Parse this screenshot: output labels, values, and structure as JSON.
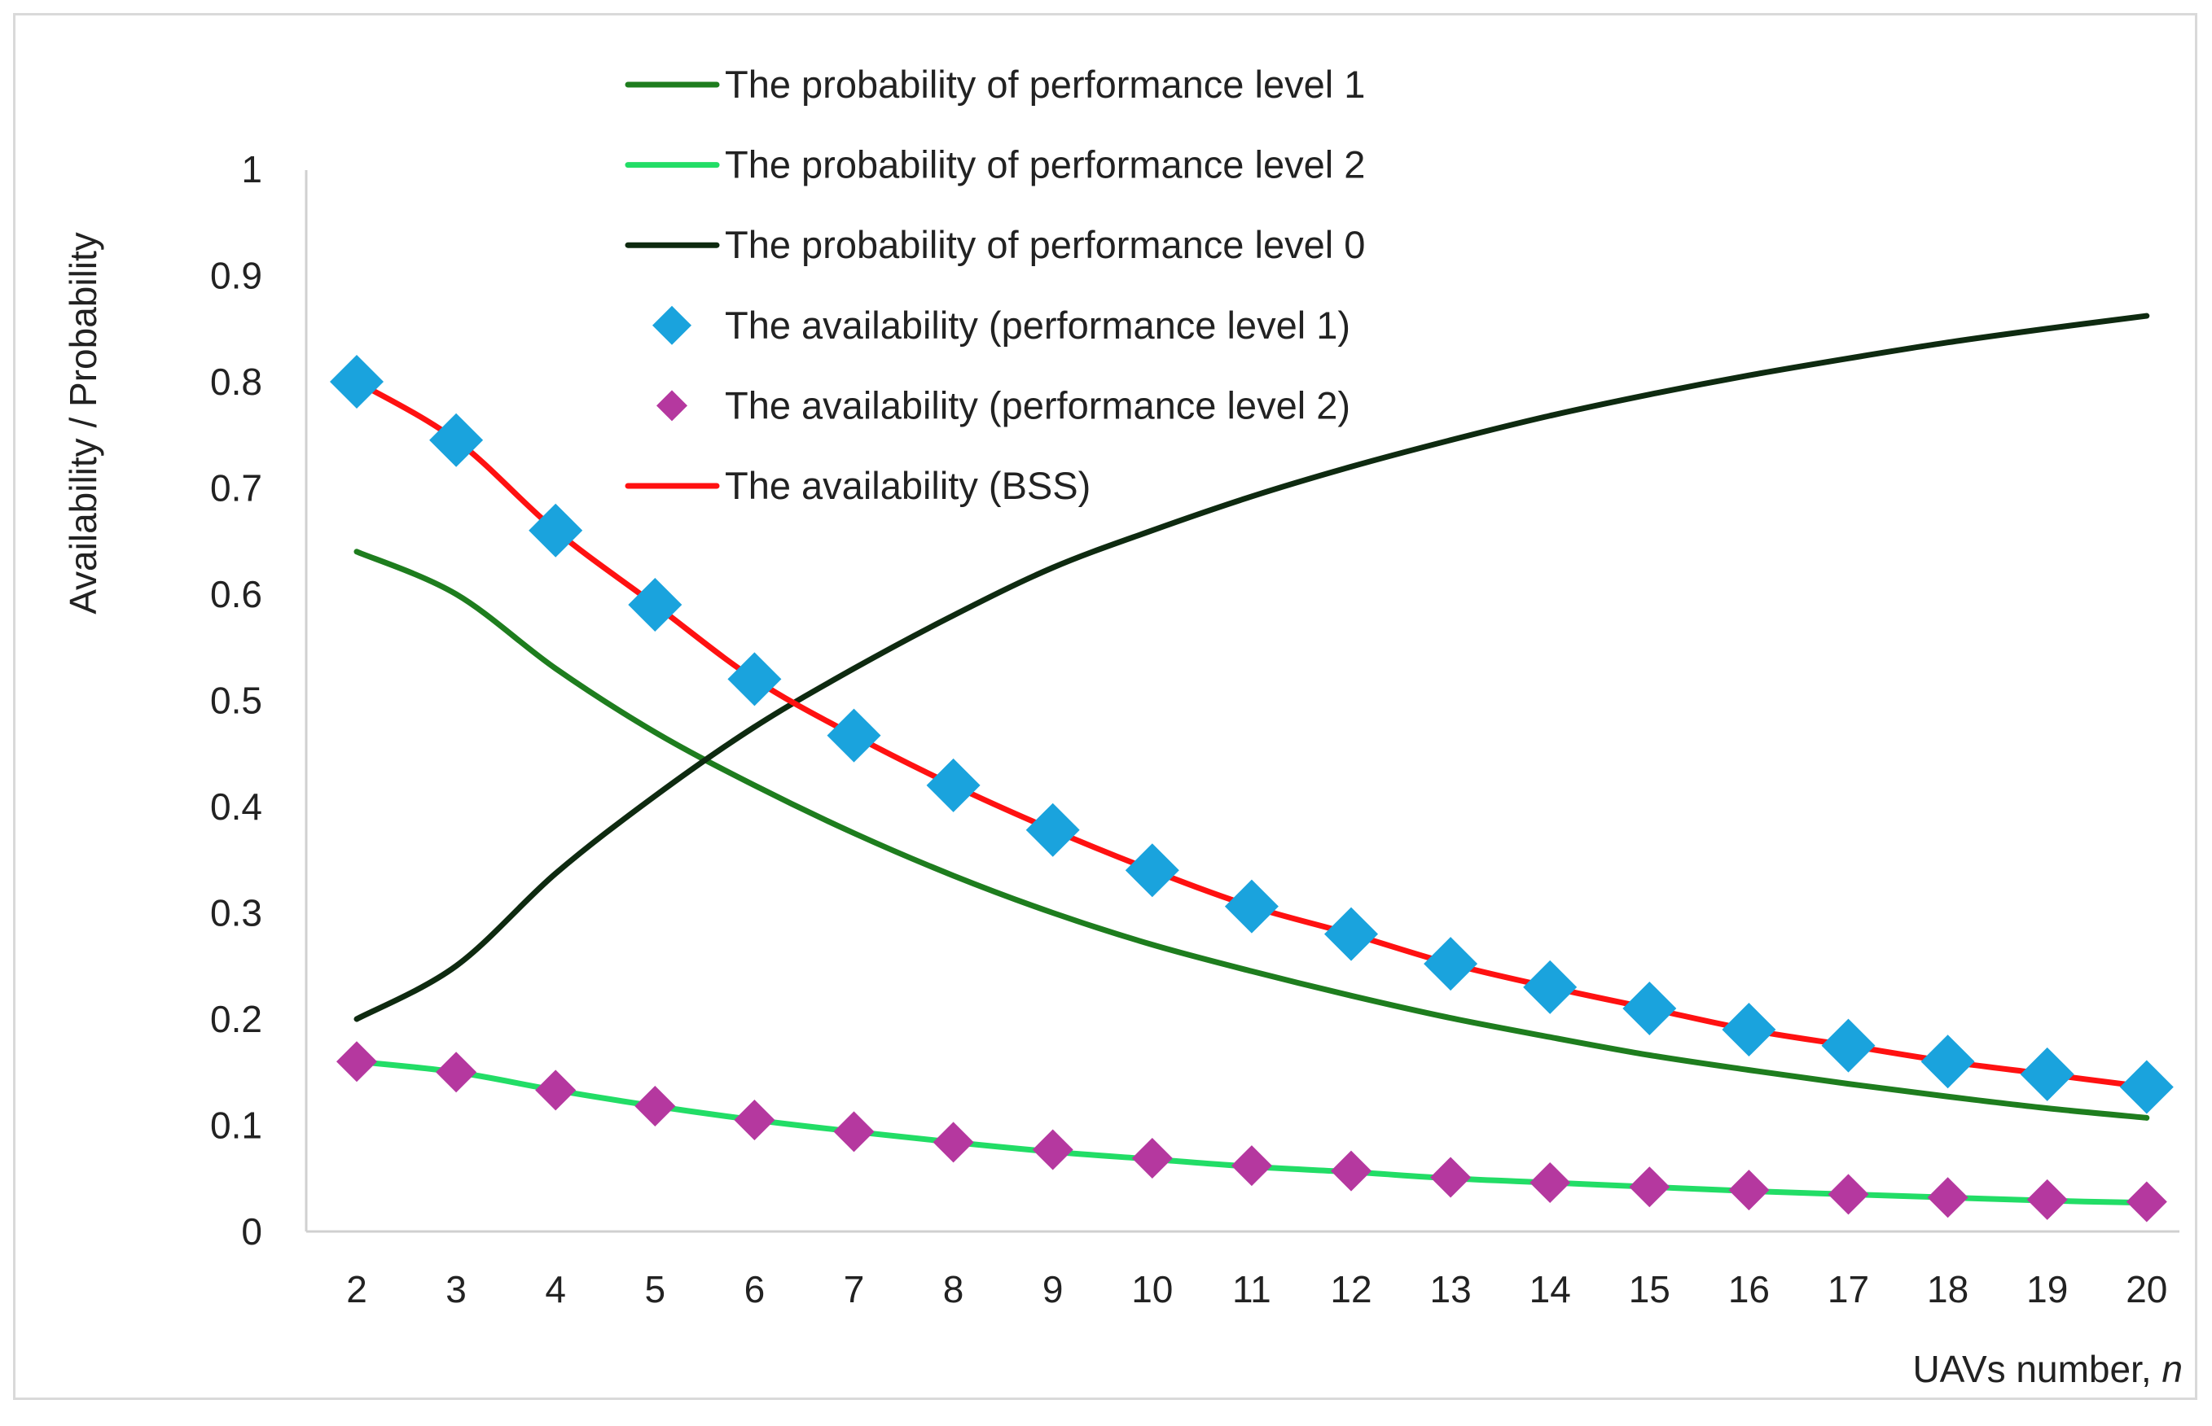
{
  "chart_data": {
    "type": "line",
    "title": "",
    "xlabel": "UAVs number, ",
    "xlabel_italic": "n",
    "ylabel": "Availability / Probability",
    "categories": [
      "2",
      "3",
      "4",
      "5",
      "6",
      "7",
      "8",
      "9",
      "10",
      "11",
      "12",
      "13",
      "14",
      "15",
      "16",
      "17",
      "18",
      "19",
      "20"
    ],
    "x": [
      2,
      3,
      4,
      5,
      6,
      7,
      8,
      9,
      10,
      11,
      12,
      13,
      14,
      15,
      16,
      17,
      18,
      19,
      20
    ],
    "yticks": [
      "0",
      "0.1",
      "0.2",
      "0.3",
      "0.4",
      "0.5",
      "0.6",
      "0.7",
      "0.8",
      "0.9",
      "1"
    ],
    "ylim": [
      0,
      1
    ],
    "grid": false,
    "legend_position": "top-center",
    "series": [
      {
        "name": "The probability of performance level 1",
        "style": "line",
        "color": "#1e7d1e",
        "values": [
          0.64,
          0.6,
          0.53,
          0.47,
          0.42,
          0.375,
          0.335,
          0.3,
          0.27,
          0.245,
          0.222,
          0.201,
          0.183,
          0.166,
          0.152,
          0.139,
          0.127,
          0.116,
          0.107
        ]
      },
      {
        "name": "The probability of performance level 2",
        "style": "line",
        "color": "#22dd66",
        "values": [
          0.16,
          0.15,
          0.133,
          0.118,
          0.105,
          0.094,
          0.084,
          0.075,
          0.068,
          0.061,
          0.056,
          0.05,
          0.046,
          0.042,
          0.038,
          0.035,
          0.032,
          0.029,
          0.027
        ]
      },
      {
        "name": "The probability of performance level 0",
        "style": "line",
        "color": "#0e2a10",
        "values": [
          0.2,
          0.25,
          0.337,
          0.41,
          0.475,
          0.53,
          0.58,
          0.625,
          0.66,
          0.692,
          0.72,
          0.745,
          0.768,
          0.788,
          0.806,
          0.822,
          0.837,
          0.85,
          0.862
        ]
      },
      {
        "name": "The availability (performance level 1)",
        "style": "marker",
        "color": "#1aa3dd",
        "values": [
          0.8,
          0.745,
          0.66,
          0.59,
          0.52,
          0.467,
          0.42,
          0.378,
          0.34,
          0.306,
          0.28,
          0.252,
          0.23,
          0.21,
          0.19,
          0.175,
          0.16,
          0.148,
          0.136
        ]
      },
      {
        "name": "The availability (performance level 2)",
        "style": "marker",
        "color": "#b5389f",
        "values": [
          0.16,
          0.15,
          0.133,
          0.118,
          0.105,
          0.094,
          0.084,
          0.077,
          0.069,
          0.062,
          0.057,
          0.051,
          0.046,
          0.042,
          0.039,
          0.035,
          0.032,
          0.03,
          0.028
        ]
      },
      {
        "name": "The availability (BSS)",
        "style": "line",
        "color": "#ff1111",
        "values": [
          0.8,
          0.745,
          0.66,
          0.59,
          0.52,
          0.467,
          0.42,
          0.378,
          0.34,
          0.306,
          0.28,
          0.252,
          0.23,
          0.21,
          0.19,
          0.175,
          0.16,
          0.148,
          0.136
        ]
      }
    ]
  }
}
